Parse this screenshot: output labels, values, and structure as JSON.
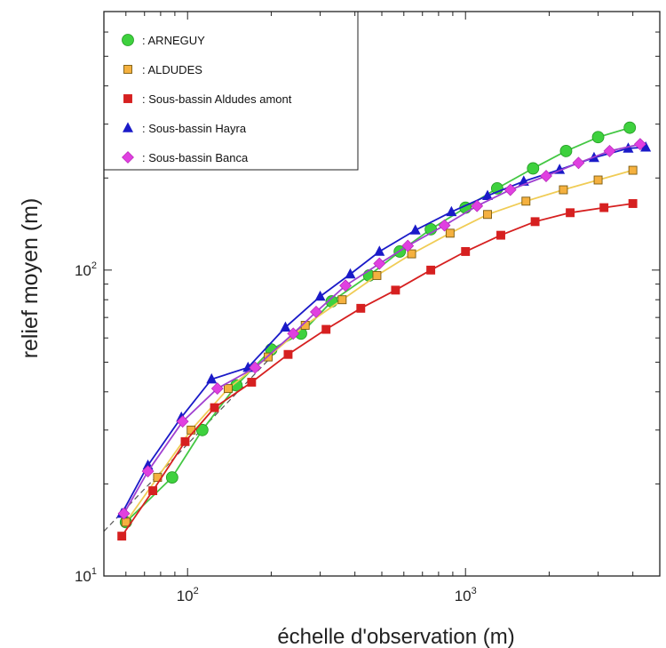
{
  "chart_data": {
    "type": "scatter",
    "title": "",
    "xlabel": "échelle d'observation (m)",
    "ylabel": "relief moyen (m)",
    "xscale": "log",
    "yscale": "log",
    "xlim": [
      50,
      5000
    ],
    "ylim": [
      10,
      700
    ],
    "x_tick_labels": [
      {
        "value": 100,
        "base": "10",
        "exp": "2"
      },
      {
        "value": 1000,
        "base": "10",
        "exp": "3"
      }
    ],
    "y_tick_labels": [
      {
        "value": 10,
        "base": "10",
        "exp": "1"
      },
      {
        "value": 100,
        "base": "10",
        "exp": "2"
      }
    ],
    "grid": false,
    "legend_position": "top-left",
    "legend_prefix": ": ",
    "reference_line": {
      "style": "dashed",
      "color": "#555555",
      "x": [
        50,
        200
      ],
      "y": [
        14,
        52
      ]
    },
    "series": [
      {
        "name": "ARNEGUY",
        "marker": "circle",
        "fill": "#3ed13e",
        "stroke": "#239a23",
        "line": "#43c743",
        "x": [
          60,
          88,
          113,
          150,
          200,
          256,
          330,
          450,
          580,
          750,
          1000,
          1300,
          1750,
          2300,
          3000,
          3900
        ],
        "y": [
          15,
          21,
          30,
          42,
          55,
          62,
          79,
          96,
          115,
          136,
          160,
          185,
          215,
          245,
          272,
          292
        ]
      },
      {
        "name": "ALDUDES",
        "marker": "square",
        "fill": "#f5b13f",
        "stroke": "#7a5a10",
        "line": "#f0cc55",
        "x": [
          60,
          78,
          103,
          140,
          195,
          265,
          360,
          480,
          640,
          880,
          1200,
          1650,
          2250,
          3000,
          4000
        ],
        "y": [
          15,
          21,
          30,
          41,
          52,
          66,
          80,
          96,
          113,
          132,
          152,
          168,
          183,
          197,
          212
        ]
      },
      {
        "name": "Sous-bassin Aldudes amont",
        "marker": "square",
        "fill": "#d62020",
        "stroke": "#d62020",
        "line": "#d62020",
        "x": [
          58,
          75,
          98,
          125,
          170,
          230,
          315,
          420,
          560,
          750,
          1000,
          1340,
          1780,
          2380,
          3150,
          4000
        ],
        "y": [
          13.5,
          19,
          27.5,
          35.5,
          43,
          53,
          64,
          75,
          86,
          100,
          115,
          130,
          144,
          154,
          160,
          165
        ]
      },
      {
        "name": "Sous-bassin Hayra",
        "marker": "triangle",
        "fill": "#1a1ac8",
        "stroke": "#1a1ac8",
        "line": "#1a1ac8",
        "x": [
          58,
          72,
          95,
          122,
          165,
          225,
          300,
          385,
          490,
          660,
          890,
          1200,
          1620,
          2180,
          2900,
          3850,
          4450
        ],
        "y": [
          16,
          23,
          33,
          44,
          48,
          65,
          82,
          97,
          115,
          135,
          155,
          175,
          195,
          213,
          233,
          250,
          252
        ]
      },
      {
        "name": "Sous-bassin Banca",
        "marker": "diamond",
        "fill": "#e040e0",
        "stroke": "#b020b0",
        "line": "#a040d0",
        "x": [
          59,
          72,
          96,
          128,
          175,
          240,
          290,
          370,
          490,
          620,
          840,
          1100,
          1450,
          1950,
          2550,
          3300,
          4250
        ],
        "y": [
          16,
          22,
          32,
          41,
          48,
          62,
          73,
          89,
          105,
          120,
          140,
          162,
          183,
          203,
          224,
          245,
          258
        ]
      }
    ]
  }
}
